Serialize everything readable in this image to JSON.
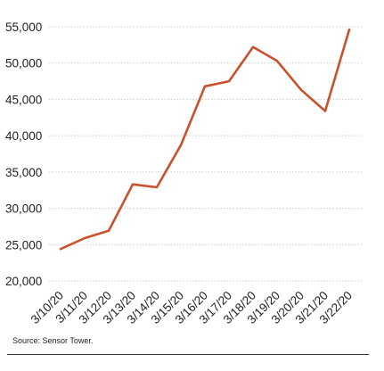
{
  "chart_data": {
    "type": "line",
    "x": [
      "3/10/20",
      "3/11/20",
      "3/12/20",
      "3/13/20",
      "3/14/20",
      "3/15/20",
      "3/16/20",
      "3/17/20",
      "3/18/20",
      "3/19/20",
      "3/20/20",
      "3/21/20",
      "3/22/20"
    ],
    "series": [
      {
        "values": [
          24400,
          25900,
          26900,
          33300,
          32900,
          38700,
          46800,
          47500,
          52200,
          50300,
          46300,
          43400,
          54600
        ]
      }
    ],
    "ylim": [
      20000,
      55000
    ],
    "yticks": [
      20000,
      25000,
      30000,
      35000,
      40000,
      45000,
      50000,
      55000
    ],
    "ytick_labels": [
      "20,000",
      "25,000",
      "30,000",
      "35,000",
      "40,000",
      "45,000",
      "50,000",
      "55,000"
    ],
    "grid": "horizontal dotted",
    "line_color": "#C9512B",
    "grid_color": "#cccccc"
  },
  "source": "Source: Sensor Tower."
}
